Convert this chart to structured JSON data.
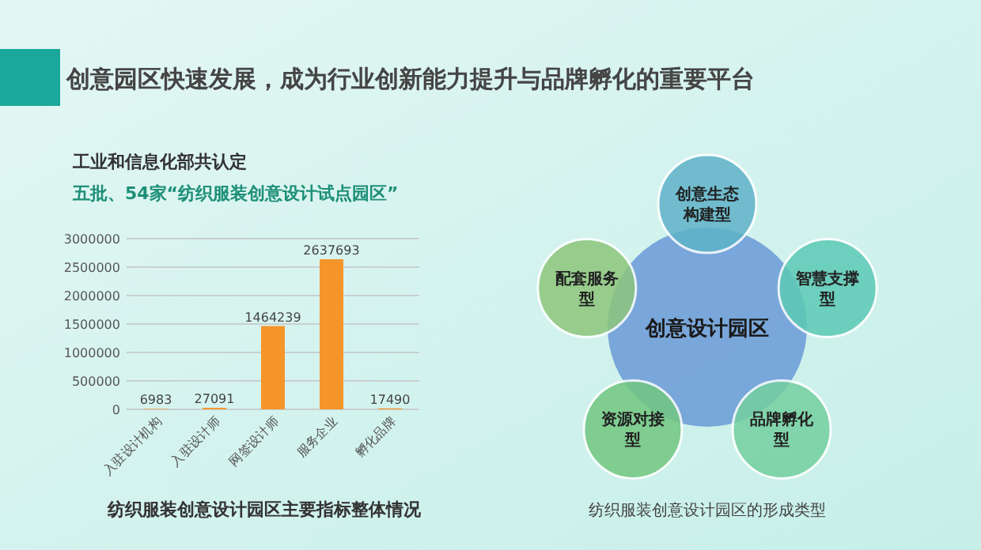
{
  "chart_data": [
    {
      "type": "bar",
      "title": "创意园区快速发展，成为行业创新能力提升与品牌孵化的重要平台",
      "subtitle": "工业和信息化部共认定",
      "annotations": [
        "五批、54家“纺织服装创意设计试点园区”",
        "纺织服装创意设计园区主要指标整体情况"
      ],
      "categories": [
        "入驻设计机构",
        "入驻设计师",
        "网签设计师",
        "服务企业",
        "孵化品牌"
      ],
      "values": [
        6983,
        27091,
        1464239,
        2637693,
        17490
      ],
      "color": "#f5952a",
      "ylim": [
        0,
        3000000
      ],
      "yticks": [
        0,
        500000,
        1000000,
        1500000,
        2000000,
        2500000,
        3000000
      ],
      "grid": "y",
      "data_labels": true
    },
    {
      "type": "other",
      "categories": [
        "创意生态构建型",
        "智慧支撑型",
        "品牌孵化型",
        "资源对接型",
        "配套服务型"
      ],
      "colors": [
        "#5fb3c9",
        "#5ccab5",
        "#74d0a0",
        "#72c780",
        "#8dc67c"
      ],
      "annotations": [
        "创意设计园区",
        "纺织服装创意设计园区的形成类型"
      ]
    }
  ]
}
